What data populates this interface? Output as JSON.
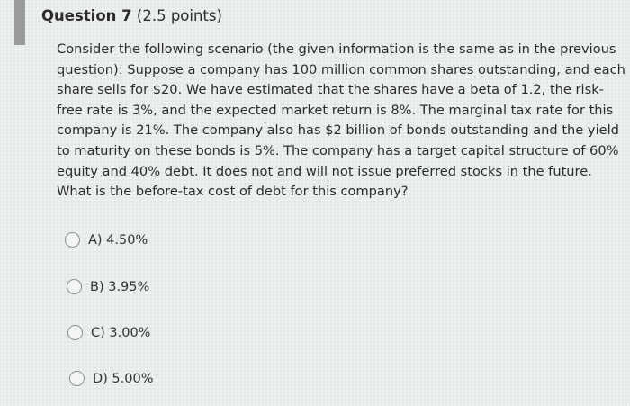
{
  "question": {
    "title": "Question 7",
    "points": "(2.5 points)",
    "text_lines": [
      "Consider the following scenario (the given information is the same as in the previous",
      "question): Suppose a company has 100 million common shares outstanding, and each",
      "share sells for $20. We have estimated that the shares have a beta of 1.2, the risk-",
      "free rate is 3%, and the expected market return is 8%. The marginal tax rate for this",
      "company is 21%. The company also has $2 billion of bonds outstanding and the yield",
      "to maturity on these bonds is 5%. The company has a target capital structure of 60%",
      "equity and 40% debt. It does not and will not issue preferred stocks in the future.",
      "What is the before-tax cost of debt for this company?"
    ],
    "options": [
      {
        "label": "A) 4.50%"
      },
      {
        "label": "B) 3.95%"
      },
      {
        "label": "C) 3.00%"
      },
      {
        "label": "D) 5.00%"
      }
    ]
  }
}
